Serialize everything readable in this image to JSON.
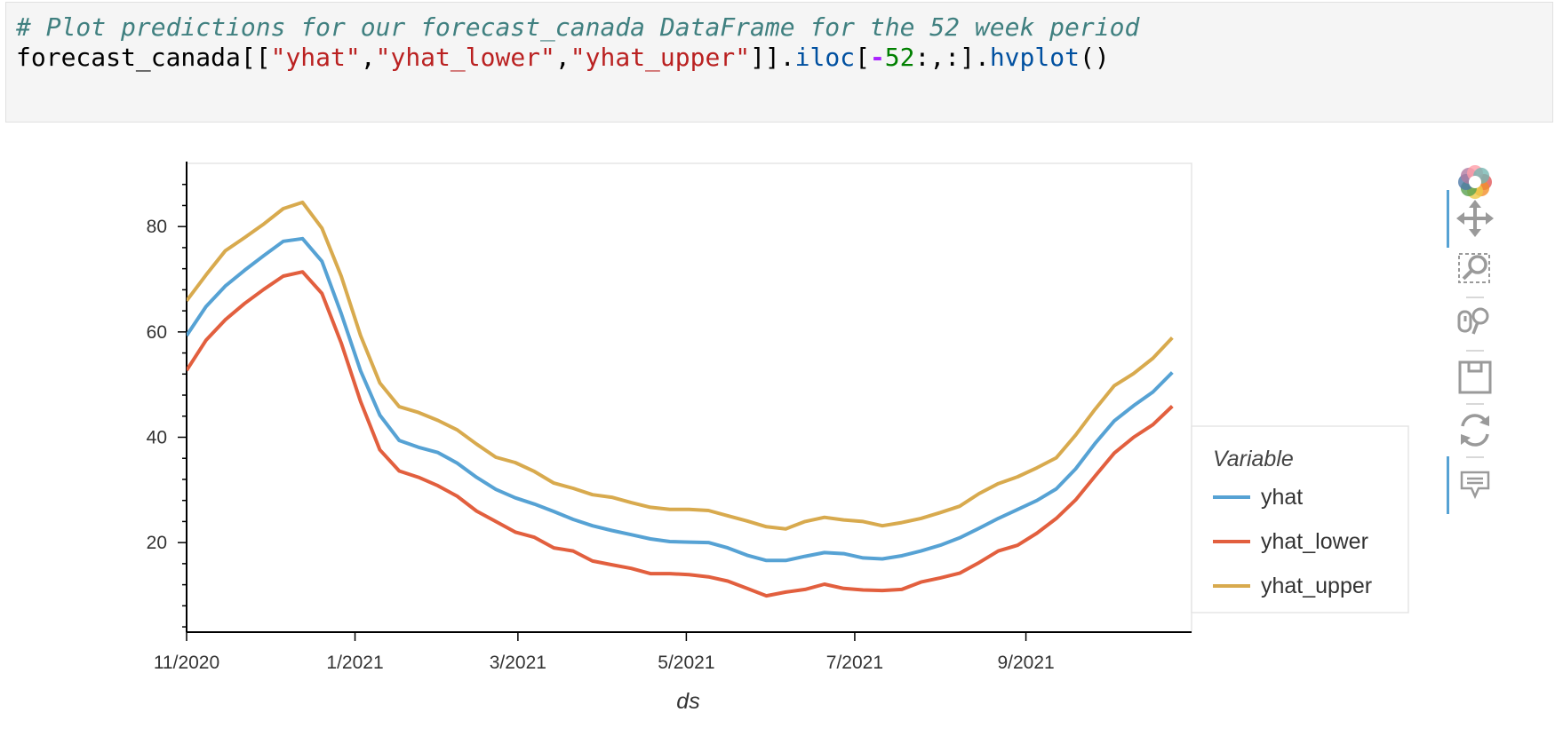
{
  "code_cell": {
    "comment": "# Plot predictions for our forecast_canada DataFrame for the 52 week period",
    "tokens": [
      {
        "text": "forecast_canada",
        "cls": "tok-name"
      },
      {
        "text": "[[",
        "cls": "tok-punct"
      },
      {
        "text": "\"yhat\"",
        "cls": "tok-str"
      },
      {
        "text": ",",
        "cls": "tok-punct"
      },
      {
        "text": "\"yhat_lower\"",
        "cls": "tok-str"
      },
      {
        "text": ",",
        "cls": "tok-punct"
      },
      {
        "text": "\"yhat_upper\"",
        "cls": "tok-str"
      },
      {
        "text": "]].",
        "cls": "tok-punct"
      },
      {
        "text": "iloc",
        "cls": "tok-attr"
      },
      {
        "text": "[",
        "cls": "tok-punct"
      },
      {
        "text": "-",
        "cls": "tok-minus"
      },
      {
        "text": "52",
        "cls": "tok-num"
      },
      {
        "text": ":,:].",
        "cls": "tok-punct"
      },
      {
        "text": "hvplot",
        "cls": "tok-attr"
      },
      {
        "text": "()",
        "cls": "tok-punct"
      }
    ]
  },
  "chart_data": {
    "type": "line",
    "xlabel": "ds",
    "ylabel": "",
    "ylim": [
      3,
      92
    ],
    "xlim": [
      "2020-11-01",
      "2021-10-31"
    ],
    "x_tick_labels": [
      "11/2020",
      "1/2021",
      "3/2021",
      "5/2021",
      "7/2021",
      "9/2021"
    ],
    "y_tick_labels": [
      "20",
      "40",
      "60",
      "80"
    ],
    "legend": {
      "title": "Variable",
      "position": "right"
    },
    "x": [
      "2020-11-01",
      "2020-11-08",
      "2020-11-15",
      "2020-11-22",
      "2020-11-29",
      "2020-12-06",
      "2020-12-13",
      "2020-12-20",
      "2020-12-27",
      "2021-01-03",
      "2021-01-10",
      "2021-01-17",
      "2021-01-24",
      "2021-01-31",
      "2021-02-07",
      "2021-02-14",
      "2021-02-21",
      "2021-02-28",
      "2021-03-07",
      "2021-03-14",
      "2021-03-21",
      "2021-03-28",
      "2021-04-04",
      "2021-04-11",
      "2021-04-18",
      "2021-04-25",
      "2021-05-02",
      "2021-05-09",
      "2021-05-16",
      "2021-05-23",
      "2021-05-30",
      "2021-06-06",
      "2021-06-13",
      "2021-06-20",
      "2021-06-27",
      "2021-07-04",
      "2021-07-11",
      "2021-07-18",
      "2021-07-25",
      "2021-08-01",
      "2021-08-08",
      "2021-08-15",
      "2021-08-22",
      "2021-08-29",
      "2021-09-05",
      "2021-09-12",
      "2021-09-19",
      "2021-09-26",
      "2021-10-03",
      "2021-10-10",
      "2021-10-17",
      "2021-10-24"
    ],
    "series": [
      {
        "name": "yhat",
        "color": "#56a2d4",
        "values": [
          59.3,
          64.8,
          68.7,
          71.7,
          74.5,
          77.2,
          77.7,
          73.4,
          63.5,
          52.6,
          44.2,
          39.4,
          38.1,
          37.1,
          35.1,
          32.4,
          30.1,
          28.5,
          27.3,
          25.9,
          24.4,
          23.2,
          22.3,
          21.5,
          20.7,
          20.2,
          20.1,
          20.0,
          19.0,
          17.6,
          16.6,
          16.6,
          17.4,
          18.1,
          17.9,
          17.1,
          16.9,
          17.5,
          18.4,
          19.5,
          20.9,
          22.7,
          24.6,
          26.3,
          28.0,
          30.2,
          34.0,
          38.8,
          43.1,
          46.0,
          48.6,
          52.3
        ]
      },
      {
        "name": "yhat_lower",
        "color": "#e25f3e",
        "values": [
          52.7,
          58.4,
          62.3,
          65.4,
          68.1,
          70.6,
          71.4,
          67.3,
          57.9,
          46.8,
          37.6,
          33.6,
          32.4,
          30.8,
          28.8,
          26.0,
          24.0,
          22.0,
          21.0,
          19.0,
          18.4,
          16.5,
          15.8,
          15.1,
          14.1,
          14.1,
          13.9,
          13.5,
          12.7,
          11.3,
          9.9,
          10.6,
          11.1,
          12.1,
          11.3,
          11.0,
          10.9,
          11.1,
          12.5,
          13.3,
          14.2,
          16.2,
          18.4,
          19.5,
          21.8,
          24.6,
          28.1,
          32.6,
          37.0,
          40.0,
          42.4,
          45.9
        ]
      },
      {
        "name": "yhat_upper",
        "color": "#d8aa4e",
        "values": [
          65.9,
          70.8,
          75.4,
          77.9,
          80.5,
          83.4,
          84.6,
          79.7,
          70.6,
          59.3,
          50.3,
          45.8,
          44.7,
          43.2,
          41.4,
          38.7,
          36.2,
          35.2,
          33.5,
          31.3,
          30.3,
          29.1,
          28.6,
          27.6,
          26.7,
          26.3,
          26.3,
          26.1,
          25.1,
          24.1,
          23.0,
          22.6,
          24.0,
          24.8,
          24.3,
          24.0,
          23.2,
          23.8,
          24.6,
          25.7,
          26.9,
          29.3,
          31.2,
          32.5,
          34.2,
          36.1,
          40.4,
          45.3,
          49.8,
          52.1,
          55.0,
          58.9
        ]
      }
    ]
  },
  "toolbar": {
    "logo_icon": "bokeh-logo-icon",
    "tools": [
      "pan-icon",
      "box-zoom-icon",
      "wheel-zoom-icon",
      "save-icon",
      "reset-icon",
      "hover-icon"
    ]
  }
}
